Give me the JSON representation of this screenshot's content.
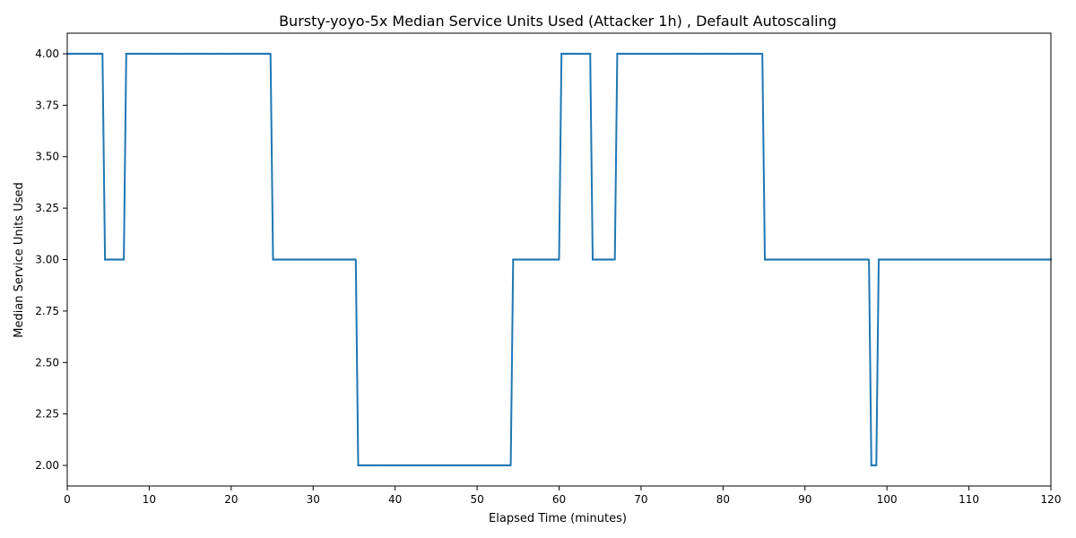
{
  "chart_data": {
    "type": "line",
    "title": "Bursty-yoyo-5x Median Service Units Used (Attacker 1h) , Default Autoscaling",
    "xlabel": "Elapsed Time (minutes)",
    "ylabel": "Median Service Units Used",
    "xlim": [
      0,
      120
    ],
    "ylim": [
      1.9,
      4.1
    ],
    "xticks": [
      0,
      10,
      20,
      30,
      40,
      50,
      60,
      70,
      80,
      90,
      100,
      110,
      120
    ],
    "yticks": [
      "2.00",
      "2.25",
      "2.50",
      "2.75",
      "3.00",
      "3.25",
      "3.50",
      "3.75",
      "4.00"
    ],
    "grid": false,
    "line_color": "#1f77b4",
    "series": [
      {
        "x": [
          0,
          4.3,
          4.6,
          6.9,
          7.2,
          24.8,
          25.1,
          35.2,
          35.5,
          54.1,
          54.4,
          60.0,
          60.3,
          63.8,
          64.1,
          66.8,
          67.1,
          84.8,
          85.1,
          97.8,
          98.1,
          98.7,
          99.0,
          120
        ],
        "y": [
          4,
          4,
          3,
          3,
          4,
          4,
          3,
          3,
          2,
          2,
          3,
          3,
          4,
          4,
          3,
          3,
          4,
          4,
          3,
          3,
          2,
          2,
          3,
          3
        ]
      }
    ]
  }
}
